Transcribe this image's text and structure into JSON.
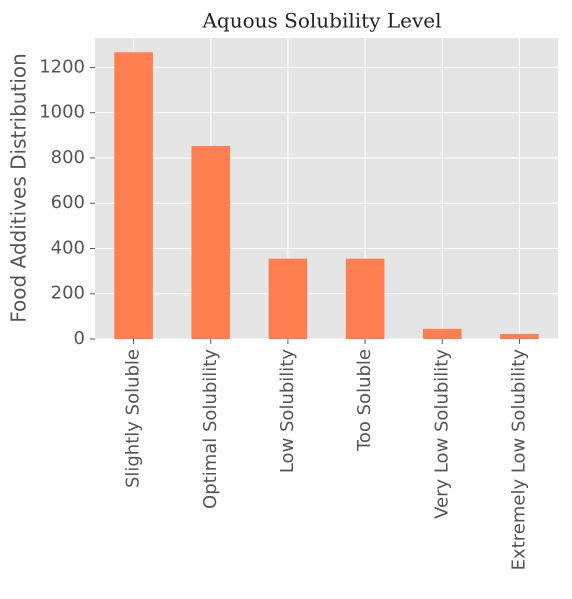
{
  "chart_data": {
    "type": "bar",
    "title": "Aquous Solubility Level",
    "y_label": "Food Additives Distribution",
    "categories": [
      "Slightly Soluble",
      "Optimal Solubility",
      "Low Solubility",
      "Too Soluble",
      "Very Low Solubility",
      "Extremely Low Solubility"
    ],
    "values": [
      1267,
      853,
      355,
      355,
      45,
      22
    ],
    "color": "#ff7f50",
    "ylim": [
      0,
      1330
    ],
    "yticks": [
      0,
      200,
      400,
      600,
      800,
      1000,
      1200
    ],
    "grid": true
  }
}
